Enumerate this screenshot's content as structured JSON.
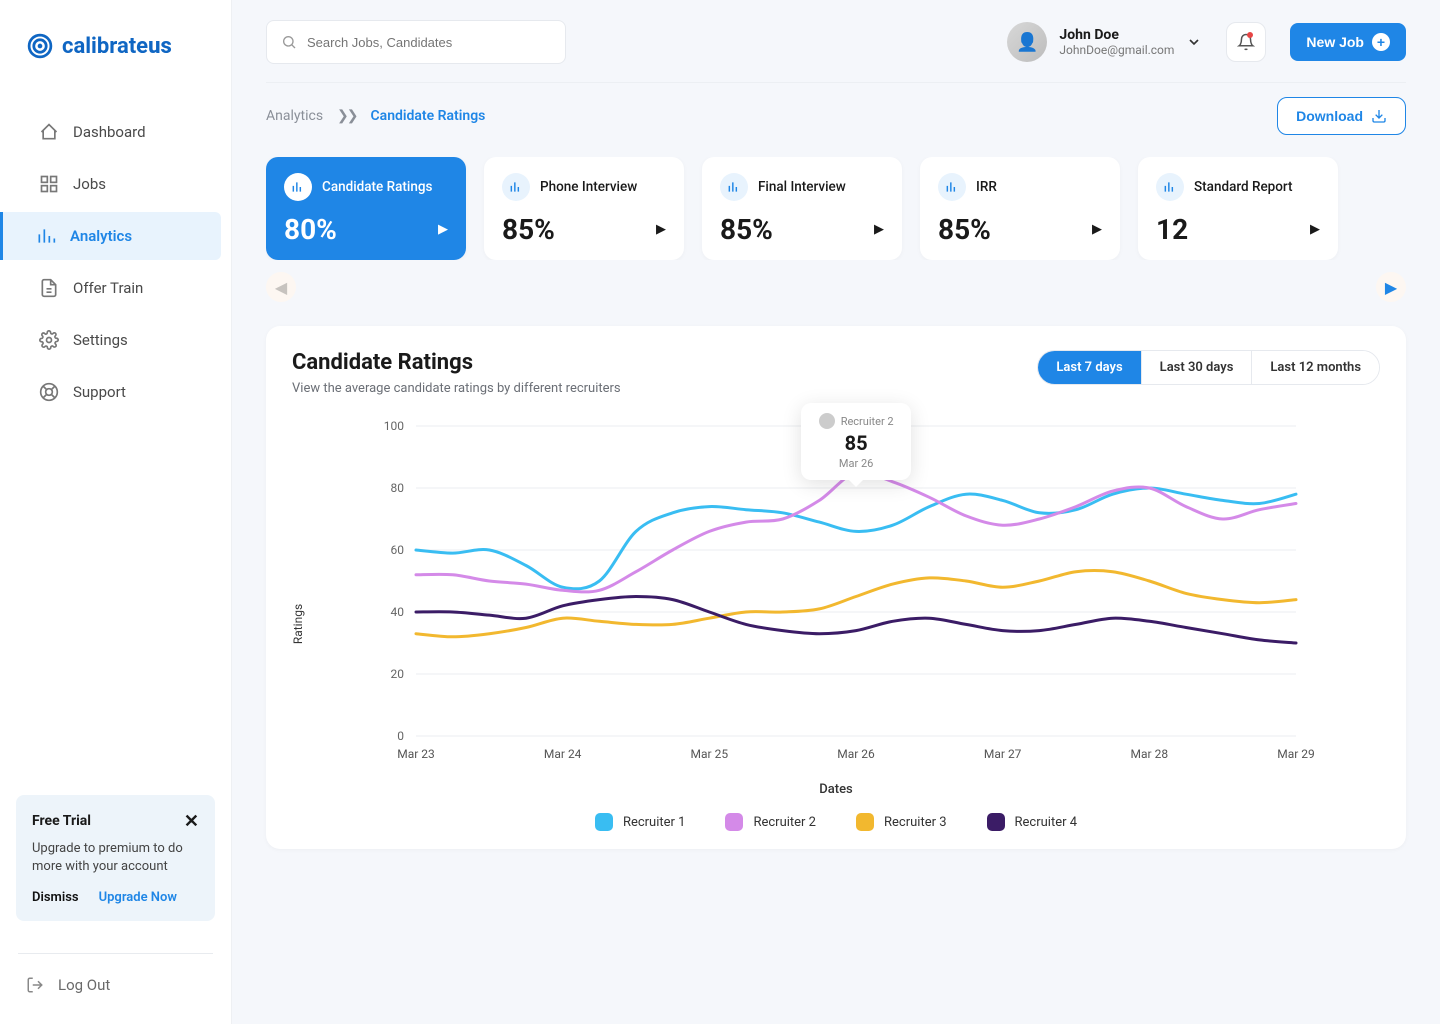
{
  "brand": {
    "name": "calibrate",
    "suffix": "us",
    "color": "#0f66c3"
  },
  "search": {
    "placeholder": "Search Jobs, Candidates"
  },
  "user": {
    "name": "John Doe",
    "email": "JohnDoe@gmail.com"
  },
  "newJobLabel": "New Job",
  "sidebar": {
    "items": [
      {
        "label": "Dashboard",
        "icon": "home",
        "active": false
      },
      {
        "label": "Jobs",
        "icon": "grid",
        "active": false
      },
      {
        "label": "Analytics",
        "icon": "bars",
        "active": true
      },
      {
        "label": "Offer Train",
        "icon": "doc",
        "active": false
      },
      {
        "label": "Settings",
        "icon": "gear",
        "active": false
      },
      {
        "label": "Support",
        "icon": "life",
        "active": false
      }
    ],
    "logout": "Log Out"
  },
  "promo": {
    "title": "Free Trial",
    "text": "Upgrade to premium to do more with your account",
    "dismiss": "Dismiss",
    "upgrade": "Upgrade Now"
  },
  "breadcrumb": {
    "l0": "Analytics",
    "l1": "Candidate Ratings"
  },
  "downloadLabel": "Download",
  "statCards": [
    {
      "title": "Candidate Ratings",
      "value": "80%",
      "active": true
    },
    {
      "title": "Phone Interview",
      "value": "85%",
      "active": false
    },
    {
      "title": "Final Interview",
      "value": "85%",
      "active": false
    },
    {
      "title": "IRR",
      "value": "85%",
      "active": false
    },
    {
      "title": "Standard Report",
      "value": "12",
      "active": false
    }
  ],
  "panel": {
    "title": "Candidate Ratings",
    "subtitle": "View the average candidate ratings by different recruiters",
    "ranges": [
      {
        "label": "Last 7 days",
        "active": true
      },
      {
        "label": "Last 30 days",
        "active": false
      },
      {
        "label": "Last 12 months",
        "active": false
      }
    ]
  },
  "tooltip": {
    "name": "Recruiter 2",
    "value": "85",
    "date": "Mar 26"
  },
  "chart": {
    "type": "line",
    "background_color": "#ffffff",
    "grid_color": "#ebedf0",
    "text_color": "#333333",
    "y_axis_title": "Ratings",
    "x_axis_title": "Dates",
    "ylim": [
      0,
      100
    ],
    "ytick_step": 20,
    "label_fontsize": 12,
    "x_labels": [
      "Mar 23",
      "Mar 24",
      "Mar 25",
      "Mar 26",
      "Mar 27",
      "Mar 28",
      "Mar 29"
    ],
    "line_width": 3,
    "series": [
      {
        "name": "Recruiter 1",
        "color": "#39bdf2",
        "data": [
          60,
          59,
          60,
          55,
          48,
          50,
          66,
          72,
          74,
          73,
          72,
          69,
          66,
          68,
          74,
          78,
          76,
          72,
          73,
          78,
          80,
          78,
          76,
          75,
          78
        ]
      },
      {
        "name": "Recruiter 2",
        "color": "#d48ae8",
        "data": [
          52,
          52,
          50,
          49,
          47,
          47,
          53,
          60,
          66,
          69,
          70,
          76,
          85,
          82,
          77,
          71,
          68,
          70,
          74,
          79,
          80,
          74,
          70,
          73,
          75
        ]
      },
      {
        "name": "Recruiter 3",
        "color": "#f2b82f",
        "data": [
          33,
          32,
          33,
          35,
          38,
          37,
          36,
          36,
          38,
          40,
          40,
          41,
          45,
          49,
          51,
          50,
          48,
          50,
          53,
          53,
          50,
          46,
          44,
          43,
          44
        ]
      },
      {
        "name": "Recruiter 4",
        "color": "#3b1c66",
        "data": [
          40,
          40,
          39,
          38,
          42,
          44,
          45,
          44,
          40,
          36,
          34,
          33,
          34,
          37,
          38,
          36,
          34,
          34,
          36,
          38,
          37,
          35,
          33,
          31,
          30
        ]
      }
    ],
    "highlight": {
      "series_index": 1,
      "point_index": 12,
      "radius": 6
    }
  }
}
